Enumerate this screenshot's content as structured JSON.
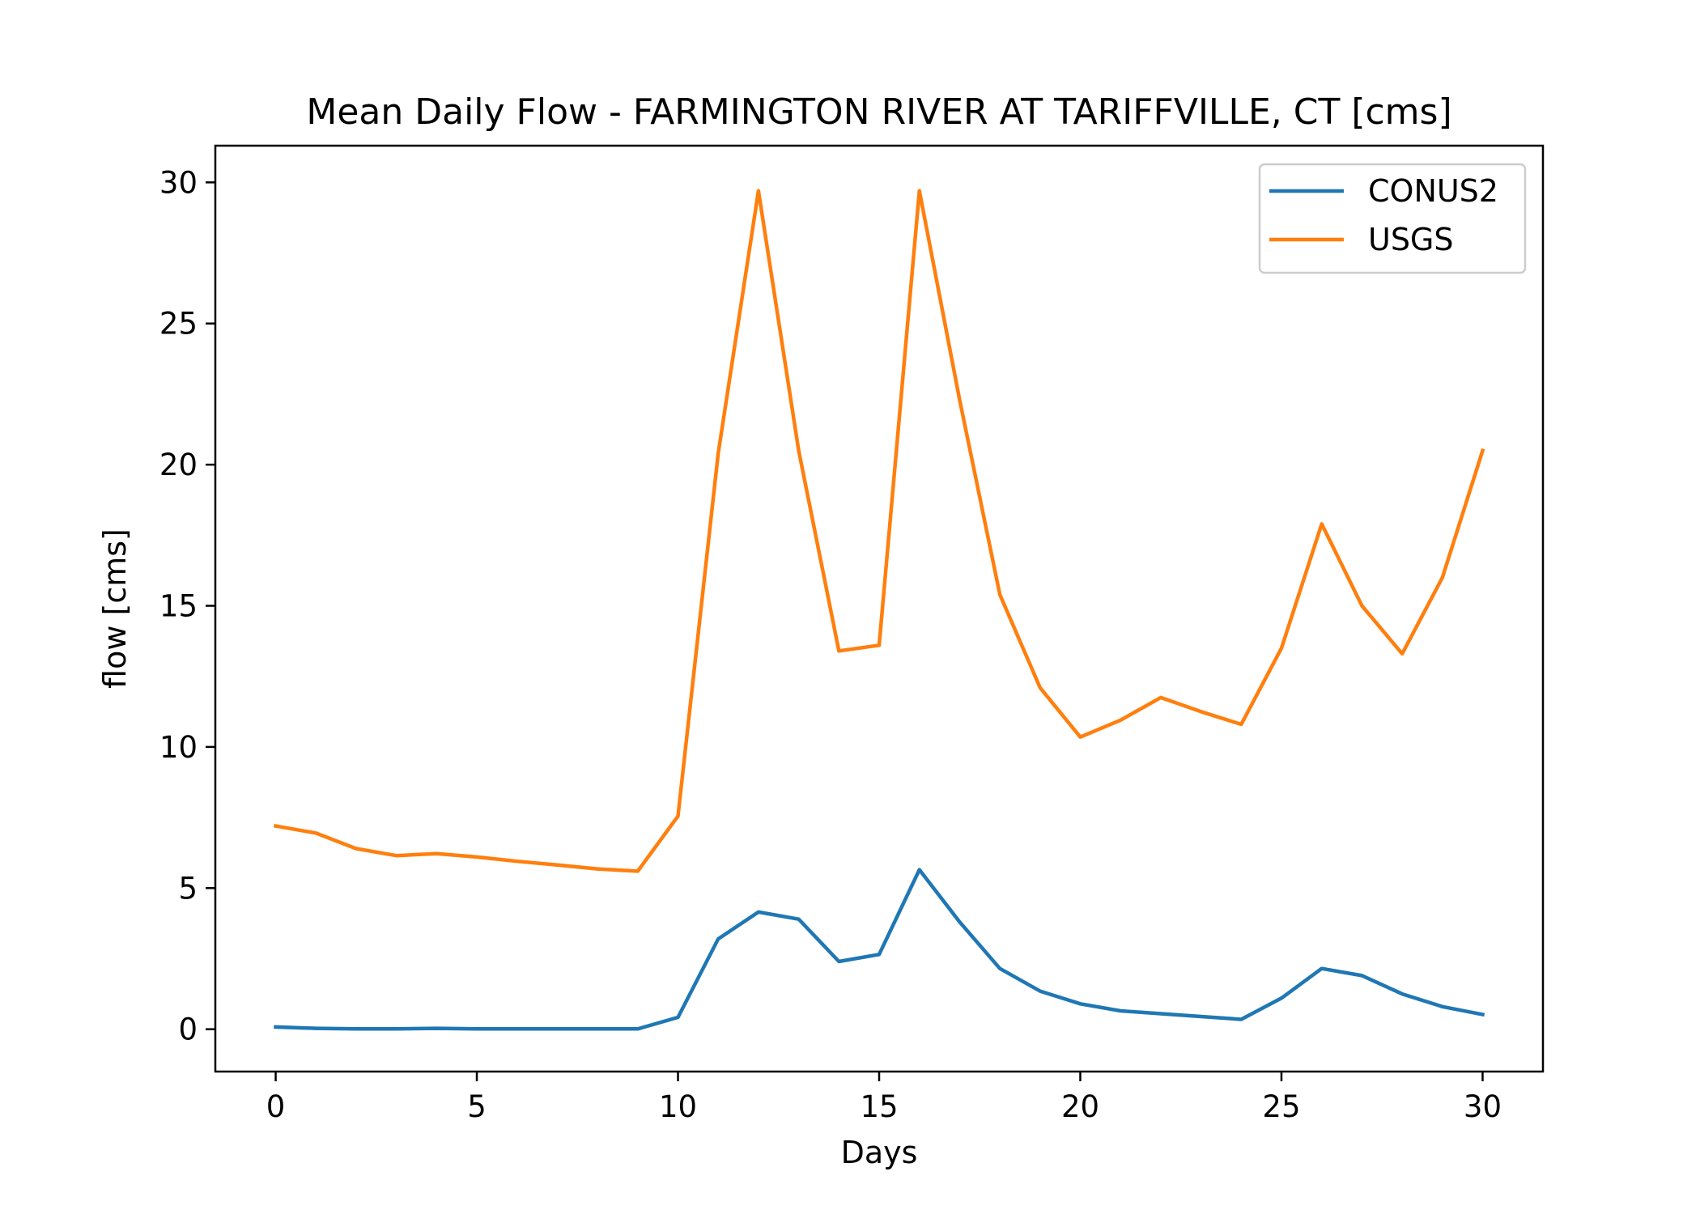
{
  "chart_data": {
    "type": "line",
    "title": "Mean Daily Flow - FARMINGTON RIVER AT TARIFFVILLE, CT [cms]",
    "xlabel": "Days",
    "ylabel": "flow [cms]",
    "xlim": [
      -1.5,
      31.5
    ],
    "ylim": [
      -1.5,
      31.3
    ],
    "xticks": [
      0,
      5,
      10,
      15,
      20,
      25,
      30
    ],
    "yticks": [
      0,
      5,
      10,
      15,
      20,
      25,
      30
    ],
    "grid": false,
    "legend_position": "upper-right",
    "x": [
      0,
      1,
      2,
      3,
      4,
      5,
      6,
      7,
      8,
      9,
      10,
      11,
      12,
      13,
      14,
      15,
      16,
      17,
      18,
      19,
      20,
      21,
      22,
      23,
      24,
      25,
      26,
      27,
      28,
      29,
      30
    ],
    "series": [
      {
        "name": "CONUS2",
        "color": "#1f77b4",
        "values": [
          0.08,
          0.03,
          0.01,
          0.01,
          0.03,
          0.01,
          0.01,
          0.01,
          0.01,
          0.01,
          0.42,
          3.2,
          4.15,
          3.9,
          2.4,
          2.65,
          5.65,
          3.8,
          2.15,
          1.35,
          0.9,
          0.65,
          0.55,
          0.45,
          0.35,
          1.1,
          2.15,
          1.9,
          1.25,
          0.8,
          0.52
        ]
      },
      {
        "name": "USGS",
        "color": "#ff7f0e",
        "values": [
          7.2,
          6.95,
          6.4,
          6.15,
          6.22,
          6.1,
          5.95,
          5.82,
          5.68,
          5.6,
          7.55,
          20.4,
          29.7,
          20.5,
          13.4,
          13.6,
          29.7,
          22.3,
          15.4,
          12.1,
          10.35,
          10.95,
          11.75,
          11.25,
          10.8,
          13.5,
          17.9,
          15.0,
          13.3,
          16.0,
          20.5
        ]
      }
    ]
  }
}
